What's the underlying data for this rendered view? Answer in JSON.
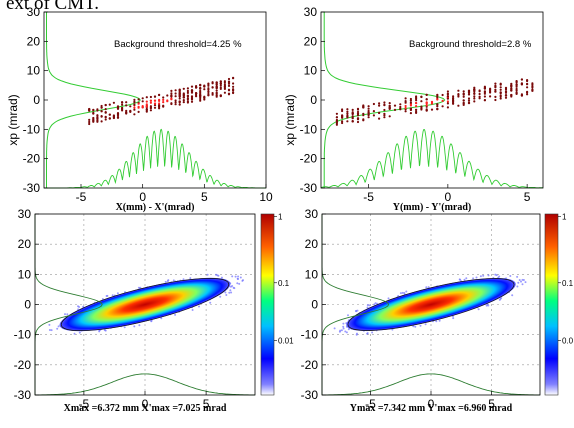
{
  "header": {
    "cut_text": "ext of CMT."
  },
  "chart_data": [
    {
      "type": "scatter",
      "xlabel": "X(mm) - X'(mrad)",
      "ylabel": "xp (mrad)",
      "annotation": "Background threshold=4.25 %",
      "xlim": [
        -8,
        10
      ],
      "ylim": [
        -30,
        30
      ],
      "xticks": [
        "-5",
        "0",
        "5",
        "10"
      ],
      "yticks": [
        "30",
        "20",
        "10",
        "0",
        "-10",
        "-20",
        "-30"
      ],
      "scatter_fit": {
        "x": [
          -4.5,
          7.5
        ],
        "y": [
          -5.5,
          5.0
        ]
      },
      "marginal_x": {
        "center": 1.5,
        "peak_y": -10,
        "base_y": -30
      },
      "marginal_y": {
        "center": 0,
        "width_mrad": 15
      },
      "colors": {
        "points": "#7a0a0a",
        "highlight": "#ff2020",
        "profile": "#33cc33"
      }
    },
    {
      "type": "scatter",
      "xlabel": "Y(mm) - Y'(mrad)",
      "ylabel": "xp (mrad)",
      "annotation": "Background threshold=2.8 %",
      "xlim": [
        -8,
        6
      ],
      "ylim": [
        -30,
        30
      ],
      "xticks": [
        "-5",
        "0",
        "5"
      ],
      "yticks": [
        "30",
        "20",
        "10",
        "0",
        "-10",
        "-20",
        "-30"
      ],
      "scatter_fit": {
        "x": [
          -7.0,
          5.5
        ],
        "y": [
          -6.0,
          5.0
        ]
      },
      "marginal_x": {
        "center": -1.5,
        "peak_y": -10,
        "base_y": -30
      },
      "marginal_y": {
        "center": 0,
        "width_mrad": 16
      },
      "colors": {
        "points": "#7a0a0a",
        "highlight": "#ff2020",
        "profile": "#33cc33"
      }
    },
    {
      "type": "heatmap",
      "xlabel": "Xmax =6.372 mm  X'max =7.025 mrad",
      "xlim": [
        -9,
        9
      ],
      "ylim": [
        -30,
        30
      ],
      "xticks": [
        "-5",
        "0",
        "5"
      ],
      "yticks": [
        "30",
        "20",
        "10",
        "0",
        "-10",
        "-20",
        "-30"
      ],
      "colorbar_ticks": [
        "1",
        "0.1",
        "0.01"
      ],
      "colorbar_scale": "log",
      "ellipse_center": [
        0,
        0
      ],
      "colors": {
        "profile": "#2e7d32"
      }
    },
    {
      "type": "heatmap",
      "xlabel": "Ymax =7.342 mm  Y'max =6.960 mrad",
      "xlim": [
        -9,
        9
      ],
      "ylim": [
        -30,
        30
      ],
      "xticks": [
        "-5",
        "0",
        "5"
      ],
      "yticks": [
        "30",
        "20",
        "10",
        "0",
        "-10",
        "-20",
        "-30"
      ],
      "colorbar_ticks": [
        "1",
        "0.1",
        "0.0"
      ],
      "colorbar_scale": "log",
      "ellipse_center": [
        0,
        0
      ],
      "colors": {
        "profile": "#2e7d32"
      }
    }
  ]
}
